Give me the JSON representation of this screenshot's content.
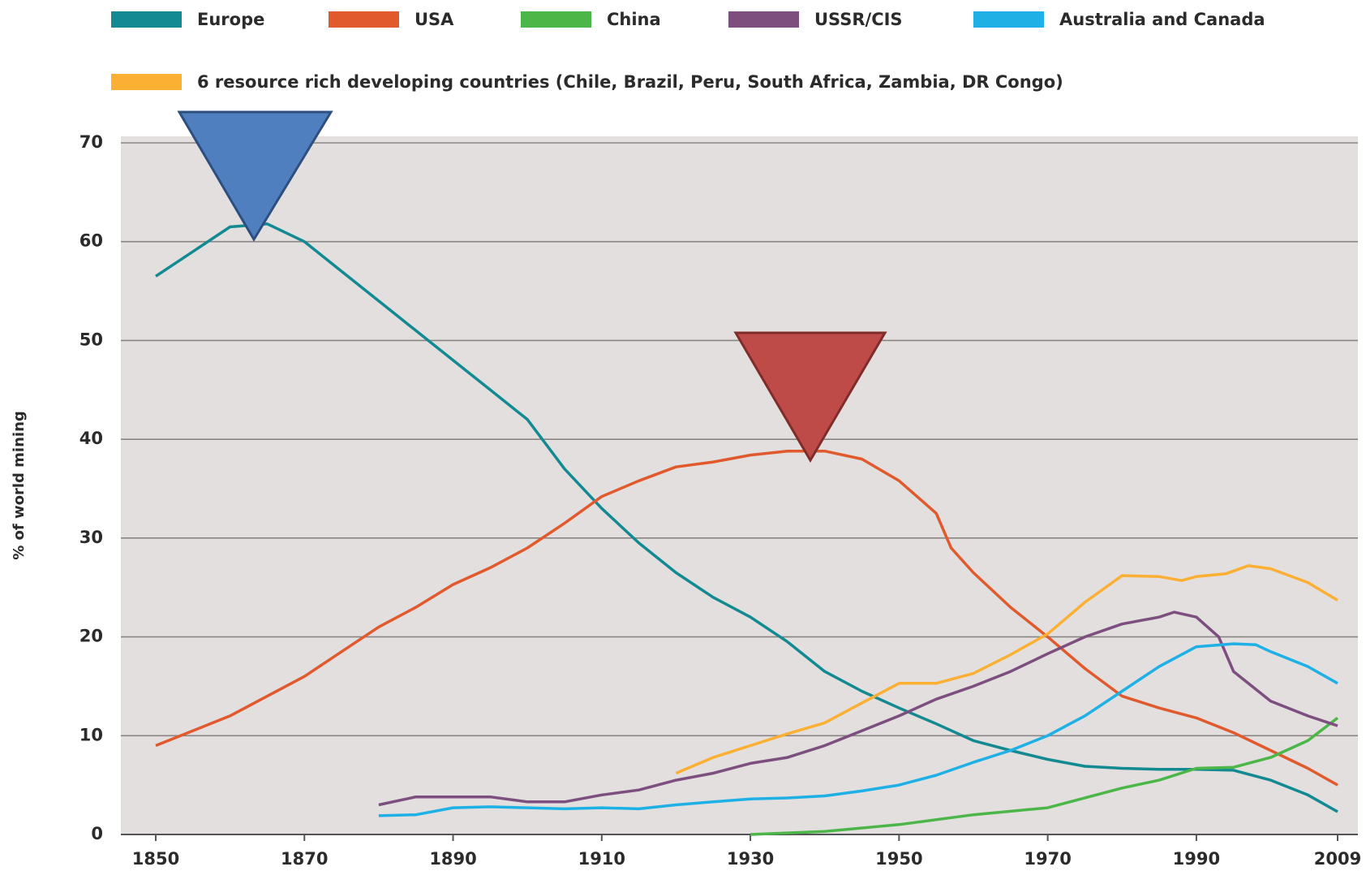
{
  "chart_data": {
    "type": "line",
    "y_label": "% of world mining",
    "ylim": [
      0,
      70
    ],
    "yticks": [
      0,
      10,
      20,
      30,
      40,
      50,
      60,
      70
    ],
    "xlim": [
      1850,
      2009
    ],
    "xticks": [
      1850,
      1870,
      1890,
      1910,
      1930,
      1950,
      1970,
      1990,
      2009
    ],
    "grid": true,
    "legend": "top",
    "series": [
      {
        "name": "Europe",
        "color": "#138a92",
        "x": [
          1850,
          1855,
          1860,
          1865,
          1870,
          1875,
          1880,
          1885,
          1890,
          1895,
          1900,
          1905,
          1910,
          1915,
          1920,
          1925,
          1930,
          1935,
          1940,
          1945,
          1950,
          1955,
          1960,
          1965,
          1970,
          1975,
          1980,
          1985,
          1990,
          1995,
          2000,
          2005,
          2009
        ],
        "values": [
          56.5,
          59,
          61.5,
          61.8,
          60,
          57,
          54,
          51,
          48,
          45,
          42,
          37,
          33,
          29.5,
          26.5,
          24,
          22,
          19.5,
          16.5,
          14.5,
          12.8,
          11.2,
          9.5,
          8.5,
          7.6,
          6.9,
          6.7,
          6.6,
          6.6,
          6.5,
          5.5,
          4,
          2.3
        ]
      },
      {
        "name": "USA",
        "color": "#e05a2e",
        "x": [
          1850,
          1855,
          1860,
          1865,
          1870,
          1875,
          1880,
          1885,
          1890,
          1895,
          1900,
          1905,
          1910,
          1915,
          1920,
          1925,
          1930,
          1935,
          1940,
          1945,
          1950,
          1955,
          1957,
          1960,
          1965,
          1970,
          1975,
          1980,
          1985,
          1990,
          1995,
          2000,
          2005,
          2009
        ],
        "values": [
          9,
          10.5,
          12,
          14,
          16,
          18.5,
          21,
          23,
          25.3,
          27,
          29,
          31.5,
          34.2,
          35.8,
          37.2,
          37.7,
          38.4,
          38.8,
          38.8,
          38,
          35.8,
          32.5,
          29,
          26.5,
          23,
          20,
          16.8,
          14,
          12.8,
          11.8,
          10.3,
          8.5,
          6.7,
          5
        ]
      },
      {
        "name": "China",
        "color": "#4cb748",
        "x": [
          1930,
          1940,
          1950,
          1960,
          1970,
          1980,
          1985,
          1990,
          1995,
          2000,
          2005,
          2009
        ],
        "values": [
          0,
          0.3,
          1,
          2,
          2.7,
          4.7,
          5.5,
          6.7,
          6.8,
          7.8,
          9.5,
          11.8
        ]
      },
      {
        "name": "USSR/CIS",
        "color": "#7c4f7f",
        "x": [
          1880,
          1885,
          1890,
          1895,
          1900,
          1905,
          1910,
          1915,
          1920,
          1925,
          1930,
          1935,
          1940,
          1945,
          1950,
          1955,
          1960,
          1965,
          1970,
          1975,
          1980,
          1985,
          1987,
          1990,
          1993,
          1995,
          2000,
          2005,
          2009
        ],
        "values": [
          3,
          3.8,
          3.8,
          3.8,
          3.3,
          3.3,
          4,
          4.5,
          5.5,
          6.2,
          7.2,
          7.8,
          9,
          10.5,
          12,
          13.7,
          15,
          16.5,
          18.3,
          20,
          21.3,
          22,
          22.5,
          22,
          20,
          16.5,
          13.5,
          12,
          11
        ]
      },
      {
        "name": "Australia and Canada",
        "color": "#1fb0e6",
        "x": [
          1880,
          1885,
          1890,
          1895,
          1900,
          1905,
          1910,
          1915,
          1920,
          1925,
          1930,
          1935,
          1940,
          1945,
          1950,
          1955,
          1960,
          1965,
          1970,
          1975,
          1980,
          1985,
          1990,
          1995,
          1998,
          2000,
          2005,
          2009
        ],
        "values": [
          1.9,
          2,
          2.7,
          2.8,
          2.7,
          2.6,
          2.7,
          2.6,
          3,
          3.3,
          3.6,
          3.7,
          3.9,
          4.4,
          5,
          6,
          7.3,
          8.5,
          10,
          12,
          14.5,
          17,
          19,
          19.3,
          19.2,
          18.5,
          17,
          15.3
        ]
      },
      {
        "name": "6 resource rich developing countries (Chile, Brazil, Peru, South Africa, Zambia, DR Congo)",
        "color": "#fbb034",
        "x": [
          1920,
          1925,
          1930,
          1935,
          1940,
          1945,
          1950,
          1955,
          1960,
          1965,
          1970,
          1975,
          1980,
          1985,
          1988,
          1990,
          1994,
          1997,
          2000,
          2005,
          2009
        ],
        "values": [
          6.2,
          7.8,
          9,
          10.2,
          11.3,
          13.3,
          15.3,
          15.3,
          16.3,
          18.2,
          20.3,
          23.5,
          26.2,
          26.1,
          25.7,
          26.1,
          26.4,
          27.2,
          26.9,
          25.5,
          23.7
        ]
      }
    ]
  }
}
